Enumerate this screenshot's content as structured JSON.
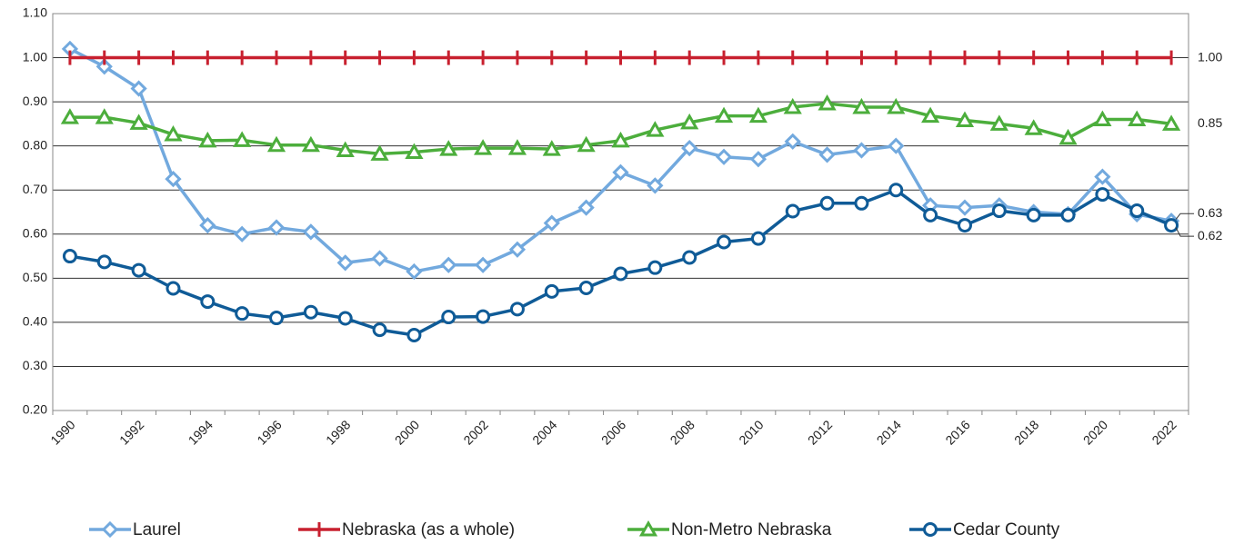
{
  "chart_data": {
    "type": "line",
    "categories": [
      "1990",
      null,
      "1992",
      null,
      "1994",
      null,
      "1996",
      null,
      "1998",
      null,
      "2000",
      null,
      "2002",
      null,
      "2004",
      null,
      "2006",
      null,
      "2008",
      null,
      "2010",
      null,
      "2012",
      null,
      "2014",
      null,
      "2016",
      null,
      "2018",
      null,
      "2020",
      null,
      "2022"
    ],
    "ylim": [
      0.2,
      1.1
    ],
    "yticks": [
      {
        "value": 0.2,
        "label": "0.20"
      },
      {
        "value": 0.3,
        "label": "0.30"
      },
      {
        "value": 0.4,
        "label": "0.40"
      },
      {
        "value": 0.5,
        "label": "0.50"
      },
      {
        "value": 0.6,
        "label": "0.60"
      },
      {
        "value": 0.7,
        "label": "0.70"
      },
      {
        "value": 0.8,
        "label": "0.80"
      },
      {
        "value": 0.9,
        "label": "0.90"
      },
      {
        "value": 1.0,
        "label": "1.00"
      },
      {
        "value": 1.1,
        "label": "1.10"
      }
    ],
    "grid": true,
    "legend": "bottom",
    "series": [
      {
        "name": "Laurel",
        "color": "#72a9de",
        "marker": "diamond",
        "values": [
          1.02,
          0.98,
          0.93,
          0.725,
          0.62,
          0.6,
          0.615,
          0.605,
          0.535,
          0.545,
          0.515,
          0.53,
          0.53,
          0.565,
          0.625,
          0.66,
          0.74,
          0.71,
          0.795,
          0.775,
          0.77,
          0.81,
          0.78,
          0.79,
          0.8,
          0.665,
          0.66,
          0.665,
          0.65,
          0.645,
          0.73,
          0.645,
          0.63
        ],
        "value_labels": [
          null,
          null,
          null,
          null,
          null,
          null,
          null,
          null,
          null,
          null,
          null,
          null,
          null,
          null,
          null,
          null,
          null,
          null,
          null,
          null,
          null,
          null,
          null,
          null,
          null,
          null,
          null,
          null,
          null,
          null,
          null,
          null,
          "0.63"
        ]
      },
      {
        "name": "Nebraska (as a whole)",
        "color": "#c8202f",
        "marker": "plus",
        "values": [
          1,
          1,
          1,
          1,
          1,
          1,
          1,
          1,
          1,
          1,
          1,
          1,
          1,
          1,
          1,
          1,
          1,
          1,
          1,
          1,
          1,
          1,
          1,
          1,
          1,
          1,
          1,
          1,
          1,
          1,
          1,
          1,
          1
        ],
        "value_labels": [
          null,
          null,
          null,
          null,
          null,
          null,
          null,
          null,
          null,
          null,
          null,
          null,
          null,
          null,
          null,
          null,
          null,
          null,
          null,
          null,
          null,
          null,
          null,
          null,
          null,
          null,
          null,
          null,
          null,
          null,
          null,
          null,
          "1.00"
        ]
      },
      {
        "name": "Non-Metro Nebraska",
        "color": "#4cae3c",
        "marker": "triangle",
        "values": [
          0.865,
          0.865,
          0.852,
          0.826,
          0.812,
          0.813,
          0.802,
          0.802,
          0.79,
          0.782,
          0.786,
          0.793,
          0.795,
          0.795,
          0.793,
          0.802,
          0.812,
          0.836,
          0.853,
          0.868,
          0.868,
          0.888,
          0.896,
          0.888,
          0.888,
          0.868,
          0.858,
          0.85,
          0.84,
          0.818,
          0.86,
          0.86,
          0.85
        ],
        "value_labels": [
          null,
          null,
          null,
          null,
          null,
          null,
          null,
          null,
          null,
          null,
          null,
          null,
          null,
          null,
          null,
          null,
          null,
          null,
          null,
          null,
          null,
          null,
          null,
          null,
          null,
          null,
          null,
          null,
          null,
          null,
          null,
          null,
          "0.85"
        ]
      },
      {
        "name": "Cedar County",
        "color": "#0f5b97",
        "marker": "circle",
        "values": [
          0.55,
          0.537,
          0.518,
          0.477,
          0.447,
          0.42,
          0.41,
          0.423,
          0.409,
          0.383,
          0.371,
          0.412,
          0.413,
          0.43,
          0.47,
          0.478,
          0.51,
          0.524,
          0.547,
          0.582,
          0.59,
          0.652,
          0.67,
          0.67,
          0.7,
          0.643,
          0.62,
          0.653,
          0.643,
          0.643,
          0.69,
          0.653,
          0.62
        ],
        "value_labels": [
          null,
          null,
          null,
          null,
          null,
          null,
          null,
          null,
          null,
          null,
          null,
          null,
          null,
          null,
          null,
          null,
          null,
          null,
          null,
          null,
          null,
          null,
          null,
          null,
          null,
          null,
          null,
          null,
          null,
          null,
          null,
          null,
          "0.62"
        ]
      }
    ]
  }
}
